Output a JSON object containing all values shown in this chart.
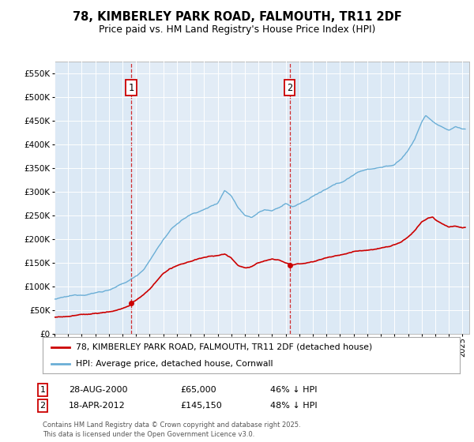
{
  "title_line1": "78, KIMBERLEY PARK ROAD, FALMOUTH, TR11 2DF",
  "title_line2": "Price paid vs. HM Land Registry's House Price Index (HPI)",
  "ytick_values": [
    0,
    50000,
    100000,
    150000,
    200000,
    250000,
    300000,
    350000,
    400000,
    450000,
    500000,
    550000
  ],
  "ylim": [
    0,
    575000
  ],
  "xlim_start": 1995.0,
  "xlim_end": 2025.5,
  "plot_bg_color": "#dce9f5",
  "fig_bg_color": "#ffffff",
  "hpi_line_color": "#6aaed6",
  "price_line_color": "#cc0000",
  "sale1_x": 2000.65,
  "sale1_y": 65000,
  "sale2_x": 2012.29,
  "sale2_y": 145150,
  "sale1_date": "28-AUG-2000",
  "sale1_price": "£65,000",
  "sale1_note": "46% ↓ HPI",
  "sale2_date": "18-APR-2012",
  "sale2_price": "£145,150",
  "sale2_note": "48% ↓ HPI",
  "legend_label_red": "78, KIMBERLEY PARK ROAD, FALMOUTH, TR11 2DF (detached house)",
  "legend_label_blue": "HPI: Average price, detached house, Cornwall",
  "footnote": "Contains HM Land Registry data © Crown copyright and database right 2025.\nThis data is licensed under the Open Government Licence v3.0.",
  "xtick_years": [
    1995,
    1996,
    1997,
    1998,
    1999,
    2000,
    2001,
    2002,
    2003,
    2004,
    2005,
    2006,
    2007,
    2008,
    2009,
    2010,
    2011,
    2012,
    2013,
    2014,
    2015,
    2016,
    2017,
    2018,
    2019,
    2020,
    2021,
    2022,
    2023,
    2024,
    2025
  ],
  "hpi_breakpoints": [
    [
      1995.0,
      73000
    ],
    [
      1995.5,
      75000
    ],
    [
      1996.0,
      77000
    ],
    [
      1996.5,
      79000
    ],
    [
      1997.0,
      81000
    ],
    [
      1997.5,
      84000
    ],
    [
      1998.0,
      87000
    ],
    [
      1998.5,
      90000
    ],
    [
      1999.0,
      94000
    ],
    [
      1999.5,
      99000
    ],
    [
      2000.0,
      105000
    ],
    [
      2000.5,
      112000
    ],
    [
      2001.0,
      122000
    ],
    [
      2001.5,
      135000
    ],
    [
      2002.0,
      155000
    ],
    [
      2002.5,
      178000
    ],
    [
      2003.0,
      200000
    ],
    [
      2003.5,
      218000
    ],
    [
      2004.0,
      232000
    ],
    [
      2004.5,
      243000
    ],
    [
      2005.0,
      252000
    ],
    [
      2005.5,
      258000
    ],
    [
      2006.0,
      263000
    ],
    [
      2006.5,
      270000
    ],
    [
      2007.0,
      278000
    ],
    [
      2007.5,
      305000
    ],
    [
      2008.0,
      295000
    ],
    [
      2008.5,
      270000
    ],
    [
      2009.0,
      255000
    ],
    [
      2009.5,
      252000
    ],
    [
      2010.0,
      262000
    ],
    [
      2010.5,
      268000
    ],
    [
      2011.0,
      265000
    ],
    [
      2011.5,
      270000
    ],
    [
      2012.0,
      280000
    ],
    [
      2012.5,
      272000
    ],
    [
      2013.0,
      278000
    ],
    [
      2013.5,
      285000
    ],
    [
      2014.0,
      295000
    ],
    [
      2014.5,
      302000
    ],
    [
      2015.0,
      308000
    ],
    [
      2015.5,
      315000
    ],
    [
      2016.0,
      320000
    ],
    [
      2016.5,
      328000
    ],
    [
      2017.0,
      338000
    ],
    [
      2017.5,
      345000
    ],
    [
      2018.0,
      350000
    ],
    [
      2018.5,
      352000
    ],
    [
      2019.0,
      355000
    ],
    [
      2019.5,
      358000
    ],
    [
      2020.0,
      360000
    ],
    [
      2020.5,
      372000
    ],
    [
      2021.0,
      390000
    ],
    [
      2021.5,
      415000
    ],
    [
      2022.0,
      450000
    ],
    [
      2022.3,
      465000
    ],
    [
      2022.7,
      455000
    ],
    [
      2023.0,
      448000
    ],
    [
      2023.5,
      438000
    ],
    [
      2024.0,
      432000
    ],
    [
      2024.5,
      440000
    ],
    [
      2025.0,
      435000
    ]
  ],
  "prop_breakpoints": [
    [
      1995.0,
      35000
    ],
    [
      1995.5,
      36000
    ],
    [
      1996.0,
      37500
    ],
    [
      1996.5,
      39000
    ],
    [
      1997.0,
      40500
    ],
    [
      1997.5,
      42000
    ],
    [
      1998.0,
      43500
    ],
    [
      1998.5,
      45000
    ],
    [
      1999.0,
      47000
    ],
    [
      1999.5,
      50000
    ],
    [
      2000.0,
      55000
    ],
    [
      2000.5,
      60000
    ],
    [
      2000.65,
      65000
    ],
    [
      2001.0,
      72000
    ],
    [
      2001.5,
      82000
    ],
    [
      2002.0,
      95000
    ],
    [
      2002.5,
      112000
    ],
    [
      2003.0,
      128000
    ],
    [
      2003.5,
      138000
    ],
    [
      2004.0,
      143000
    ],
    [
      2004.5,
      147000
    ],
    [
      2005.0,
      152000
    ],
    [
      2005.5,
      157000
    ],
    [
      2006.0,
      160000
    ],
    [
      2006.5,
      162000
    ],
    [
      2007.0,
      163000
    ],
    [
      2007.5,
      165000
    ],
    [
      2008.0,
      158000
    ],
    [
      2008.5,
      142000
    ],
    [
      2009.0,
      138000
    ],
    [
      2009.5,
      140000
    ],
    [
      2010.0,
      148000
    ],
    [
      2010.5,
      153000
    ],
    [
      2011.0,
      155000
    ],
    [
      2011.5,
      152000
    ],
    [
      2012.0,
      148000
    ],
    [
      2012.29,
      145150
    ],
    [
      2012.5,
      143000
    ],
    [
      2013.0,
      145000
    ],
    [
      2013.5,
      148000
    ],
    [
      2014.0,
      152000
    ],
    [
      2014.5,
      156000
    ],
    [
      2015.0,
      160000
    ],
    [
      2015.5,
      163000
    ],
    [
      2016.0,
      165000
    ],
    [
      2016.5,
      168000
    ],
    [
      2017.0,
      172000
    ],
    [
      2017.5,
      176000
    ],
    [
      2018.0,
      178000
    ],
    [
      2018.5,
      180000
    ],
    [
      2019.0,
      183000
    ],
    [
      2019.5,
      186000
    ],
    [
      2020.0,
      190000
    ],
    [
      2020.5,
      196000
    ],
    [
      2021.0,
      205000
    ],
    [
      2021.5,
      218000
    ],
    [
      2022.0,
      235000
    ],
    [
      2022.5,
      245000
    ],
    [
      2022.8,
      248000
    ],
    [
      2023.0,
      243000
    ],
    [
      2023.5,
      235000
    ],
    [
      2024.0,
      230000
    ],
    [
      2024.5,
      232000
    ],
    [
      2025.0,
      230000
    ]
  ]
}
